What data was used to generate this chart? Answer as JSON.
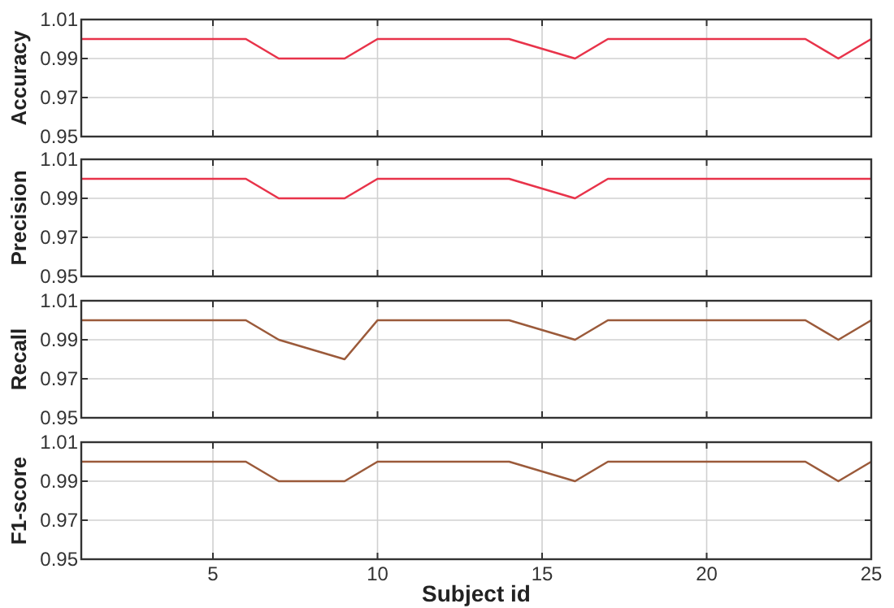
{
  "chart_data": [
    {
      "type": "line",
      "ylabel": "Accuracy",
      "x": [
        1,
        2,
        3,
        4,
        5,
        6,
        7,
        8,
        9,
        10,
        11,
        12,
        13,
        14,
        15,
        16,
        17,
        18,
        19,
        20,
        21,
        22,
        23,
        24,
        25
      ],
      "series": [
        {
          "color": "#e8334a",
          "values": [
            1,
            1,
            1,
            1,
            1,
            1,
            0.99,
            0.99,
            0.99,
            1,
            1,
            1,
            1,
            1,
            0.995,
            0.99,
            1,
            1,
            1,
            1,
            1,
            1,
            1,
            0.99,
            1
          ]
        }
      ],
      "xlim": [
        1,
        25
      ],
      "xticks": [
        5,
        10,
        15,
        20,
        25
      ],
      "ylim": [
        0.95,
        1.01
      ],
      "yticks": [
        0.95,
        0.97,
        0.99,
        1.01
      ],
      "grid": true,
      "tick_labels": "y"
    },
    {
      "type": "line",
      "ylabel": "Precision",
      "x": [
        1,
        2,
        3,
        4,
        5,
        6,
        7,
        8,
        9,
        10,
        11,
        12,
        13,
        14,
        15,
        16,
        17,
        18,
        19,
        20,
        21,
        22,
        23,
        24,
        25
      ],
      "series": [
        {
          "color": "#e8334a",
          "values": [
            1,
            1,
            1,
            1,
            1,
            1,
            0.99,
            0.99,
            0.99,
            1,
            1,
            1,
            1,
            1,
            0.995,
            0.99,
            1,
            1,
            1,
            1,
            1,
            1,
            1,
            1,
            1
          ]
        }
      ],
      "xlim": [
        1,
        25
      ],
      "xticks": [
        5,
        10,
        15,
        20,
        25
      ],
      "ylim": [
        0.95,
        1.01
      ],
      "yticks": [
        0.95,
        0.97,
        0.99,
        1.01
      ],
      "grid": true,
      "tick_labels": "y"
    },
    {
      "type": "line",
      "ylabel": "Recall",
      "x": [
        1,
        2,
        3,
        4,
        5,
        6,
        7,
        8,
        9,
        10,
        11,
        12,
        13,
        14,
        15,
        16,
        17,
        18,
        19,
        20,
        21,
        22,
        23,
        24,
        25
      ],
      "series": [
        {
          "color": "#9b5a3a",
          "values": [
            1,
            1,
            1,
            1,
            1,
            1,
            0.99,
            0.985,
            0.98,
            1,
            1,
            1,
            1,
            1,
            0.995,
            0.99,
            1,
            1,
            1,
            1,
            1,
            1,
            1,
            0.99,
            1
          ]
        }
      ],
      "xlim": [
        1,
        25
      ],
      "xticks": [
        5,
        10,
        15,
        20,
        25
      ],
      "ylim": [
        0.95,
        1.01
      ],
      "yticks": [
        0.95,
        0.97,
        0.99,
        1.01
      ],
      "grid": true,
      "tick_labels": "y"
    },
    {
      "type": "line",
      "xlabel": "Subject id",
      "ylabel": "F1-score",
      "x": [
        1,
        2,
        3,
        4,
        5,
        6,
        7,
        8,
        9,
        10,
        11,
        12,
        13,
        14,
        15,
        16,
        17,
        18,
        19,
        20,
        21,
        22,
        23,
        24,
        25
      ],
      "series": [
        {
          "color": "#9b5a3a",
          "values": [
            1,
            1,
            1,
            1,
            1,
            1,
            0.99,
            0.99,
            0.99,
            1,
            1,
            1,
            1,
            1,
            0.995,
            0.99,
            1,
            1,
            1,
            1,
            1,
            1,
            1,
            0.99,
            1
          ]
        }
      ],
      "xlim": [
        1,
        25
      ],
      "xticks": [
        5,
        10,
        15,
        20,
        25
      ],
      "ylim": [
        0.95,
        1.01
      ],
      "yticks": [
        0.95,
        0.97,
        0.99,
        1.01
      ],
      "grid": true
    }
  ]
}
